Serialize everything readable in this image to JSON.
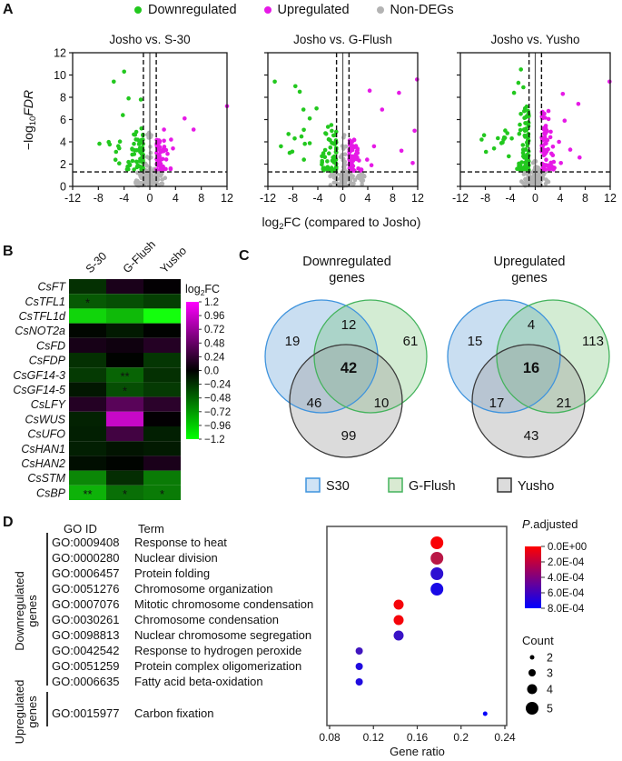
{
  "panel_labels": {
    "a": "A",
    "b": "B",
    "c": "C",
    "d": "D"
  },
  "top_legend": {
    "items": [
      {
        "label": "Downregulated",
        "color": "#22c81e"
      },
      {
        "label": "Upregulated",
        "color": "#e619e6"
      },
      {
        "label": "Non-DEGs",
        "color": "#b3b3b3"
      }
    ]
  },
  "axis_labels": {
    "volcano_y": {
      "pre": "−log",
      "sub": "10",
      "post": "FDR"
    },
    "volcano_x": {
      "pre": "log",
      "sub": "2",
      "post": "FC (compared to Josho)"
    }
  },
  "chart_data": [
    {
      "id": "volcano-s30",
      "type": "scatter",
      "title": "Josho vs. S-30",
      "xlim": [
        -12,
        12
      ],
      "ylim": [
        0,
        12
      ],
      "xticks": [
        -12,
        -8,
        -4,
        0,
        4,
        8,
        12
      ],
      "yticks": [
        0,
        2,
        4,
        6,
        8,
        10,
        12
      ],
      "thresholds": {
        "x": [
          -1,
          1
        ],
        "y": 1.3
      },
      "series": [
        {
          "name": "Non-DEGs",
          "color": "#b3b3b3",
          "clusters": [
            {
              "x": [
                -2.6,
                2.6
              ],
              "y": [
                0.05,
                1.35
              ],
              "n": 100
            },
            {
              "x": [
                -0.9,
                0.9
              ],
              "y": [
                1.35,
                4.9
              ],
              "n": 20,
              "funnel": true
            }
          ],
          "outliers": []
        },
        {
          "name": "Downregulated",
          "color": "#22c81e",
          "clusters": [
            {
              "x": [
                -3.6,
                -1.05
              ],
              "y": [
                1.5,
                4.8
              ],
              "n": 55,
              "funnel": true
            },
            {
              "x": [
                -8.6,
                -4.0
              ],
              "y": [
                1.9,
                4.2
              ],
              "n": 9
            }
          ],
          "outliers": [
            [
              -4.0,
              10.3
            ],
            [
              -5.6,
              9.4
            ],
            [
              -3.3,
              7.9
            ],
            [
              -1.4,
              7.8
            ],
            [
              -4.2,
              6.4
            ],
            [
              -1.3,
              5.2
            ],
            [
              -2.1,
              4.9
            ]
          ]
        },
        {
          "name": "Upregulated",
          "color": "#e619e6",
          "clusters": [
            {
              "x": [
                1.05,
                3.3
              ],
              "y": [
                1.5,
                4.3
              ],
              "n": 45,
              "funnel": true
            }
          ],
          "outliers": [
            [
              12,
              7.2
            ],
            [
              5.4,
              6.1
            ],
            [
              6.8,
              5.1
            ],
            [
              2.2,
              5.1
            ],
            [
              3.3,
              4.2
            ],
            [
              3.6,
              3.4
            ]
          ]
        }
      ]
    },
    {
      "id": "volcano-gflush",
      "type": "scatter",
      "title": "Josho vs. G-Flush",
      "xlim": [
        -12,
        12
      ],
      "ylim": [
        0,
        12
      ],
      "xticks": [
        -12,
        -8,
        -4,
        0,
        4,
        8,
        12
      ],
      "yticks": [
        0,
        2,
        4,
        6,
        8,
        10,
        12
      ],
      "thresholds": {
        "x": [
          -1,
          1
        ],
        "y": 1.3
      },
      "series": [
        {
          "name": "Non-DEGs",
          "color": "#b3b3b3",
          "clusters": [
            {
              "x": [
                -2.2,
                2.2
              ],
              "y": [
                0.05,
                1.35
              ],
              "n": 90
            },
            {
              "x": [
                2.2,
                3.8
              ],
              "y": [
                0.1,
                1.3
              ],
              "n": 15
            },
            {
              "x": [
                -0.8,
                0.8
              ],
              "y": [
                1.35,
                5.3
              ],
              "n": 18,
              "funnel": true
            }
          ],
          "outliers": []
        },
        {
          "name": "Downregulated",
          "color": "#22c81e",
          "clusters": [
            {
              "x": [
                -3.8,
                -1.05
              ],
              "y": [
                1.4,
                5.6
              ],
              "n": 55,
              "funnel": true
            },
            {
              "x": [
                -9.0,
                -4.2
              ],
              "y": [
                2.4,
                5.2
              ],
              "n": 8
            }
          ],
          "outliers": [
            [
              -10.9,
              9.4
            ],
            [
              -7.6,
              9.0
            ],
            [
              -6.9,
              8.5
            ],
            [
              -6.3,
              6.9
            ],
            [
              -5.3,
              6.1
            ],
            [
              -8.7,
              4.7
            ],
            [
              -9.9,
              3.6
            ],
            [
              -4.2,
              7.0
            ]
          ]
        },
        {
          "name": "Upregulated",
          "color": "#e619e6",
          "clusters": [
            {
              "x": [
                1.05,
                3.1
              ],
              "y": [
                1.4,
                4.2
              ],
              "n": 70,
              "funnel": true
            }
          ],
          "outliers": [
            [
              11.9,
              9.6
            ],
            [
              9.0,
              8.4
            ],
            [
              4.3,
              8.6
            ],
            [
              6.3,
              6.9
            ],
            [
              11.5,
              5.0
            ],
            [
              5.0,
              3.6
            ],
            [
              9.4,
              3.2
            ],
            [
              11.2,
              2.1
            ],
            [
              3.9,
              2.4
            ],
            [
              4.6,
              1.9
            ]
          ]
        }
      ]
    },
    {
      "id": "volcano-yusho",
      "type": "scatter",
      "title": "Josho vs. Yusho",
      "xlim": [
        -12,
        12
      ],
      "ylim": [
        0,
        12
      ],
      "xticks": [
        -12,
        -8,
        -4,
        0,
        4,
        8,
        12
      ],
      "yticks": [
        0,
        2,
        4,
        6,
        8,
        10,
        12
      ],
      "thresholds": {
        "x": [
          -1,
          1
        ],
        "y": 1.3
      },
      "series": [
        {
          "name": "Non-DEGs",
          "color": "#b3b3b3",
          "clusters": [
            {
              "x": [
                -2.4,
                2.4
              ],
              "y": [
                0.05,
                1.5
              ],
              "n": 90
            },
            {
              "x": [
                -0.9,
                0.9
              ],
              "y": [
                1.35,
                2.4
              ],
              "n": 14,
              "funnel": true
            }
          ],
          "outliers": []
        },
        {
          "name": "Downregulated",
          "color": "#22c81e",
          "clusters": [
            {
              "x": [
                -3.3,
                -1.05
              ],
              "y": [
                1.5,
                7.2
              ],
              "n": 80,
              "funnel": true
            },
            {
              "x": [
                -6.2,
                -3.3
              ],
              "y": [
                2.4,
                5.6
              ],
              "n": 10
            }
          ],
          "outliers": [
            [
              -2.3,
              10.5
            ],
            [
              -2.7,
              9.3
            ],
            [
              -1.9,
              8.9
            ],
            [
              -3.4,
              8.4
            ],
            [
              -8.2,
              4.6
            ],
            [
              -8.6,
              4.2
            ],
            [
              -6.6,
              3.4
            ],
            [
              -7.9,
              3.1
            ]
          ]
        },
        {
          "name": "Upregulated",
          "color": "#e619e6",
          "clusters": [
            {
              "x": [
                1.05,
                3.2
              ],
              "y": [
                1.5,
                6.8
              ],
              "n": 70,
              "funnel": true
            }
          ],
          "outliers": [
            [
              11.9,
              9.4
            ],
            [
              4.4,
              8.3
            ],
            [
              6.9,
              7.4
            ],
            [
              4.7,
              5.9
            ],
            [
              5.6,
              3.3
            ],
            [
              7.1,
              2.6
            ],
            [
              4.1,
              2.1
            ],
            [
              3.8,
              4.0
            ]
          ]
        }
      ]
    },
    {
      "id": "gene-heatmap",
      "type": "heatmap",
      "columns": [
        "S-30",
        "G-Flush",
        "Yusho"
      ],
      "colorbar": {
        "title": {
          "pre": "log",
          "sub": "2",
          "post": "FC"
        },
        "ticks": [
          "1.2",
          "0.96",
          "0.72",
          "0.48",
          "0.24",
          "0.0",
          "−0.24",
          "−0.48",
          "−0.72",
          "−0.96",
          "−1.2"
        ],
        "max_color": "#ff00ff",
        "mid_color": "#000000",
        "min_color": "#00ff00",
        "range": [
          1.2,
          -1.2
        ]
      },
      "rows": [
        {
          "gene": "CsFT",
          "values": [
            -0.35,
            0.22,
            0.05
          ],
          "sig": [
            "",
            "",
            ""
          ]
        },
        {
          "gene": "CsTFL1",
          "values": [
            -0.55,
            -0.5,
            -0.42
          ],
          "sig": [
            "*",
            "",
            ""
          ]
        },
        {
          "gene": "CsTFL1d",
          "values": [
            -1.05,
            -0.95,
            -1.2
          ],
          "sig": [
            "",
            "",
            ""
          ]
        },
        {
          "gene": "CsNOT2a",
          "values": [
            -0.08,
            -0.22,
            -0.04
          ],
          "sig": [
            "",
            "",
            ""
          ]
        },
        {
          "gene": "CsFD",
          "values": [
            0.2,
            0.15,
            0.28
          ],
          "sig": [
            "",
            "",
            ""
          ]
        },
        {
          "gene": "CsFDP",
          "values": [
            -0.35,
            -0.04,
            -0.38
          ],
          "sig": [
            "",
            "",
            ""
          ]
        },
        {
          "gene": "CsGF14-3",
          "values": [
            -0.4,
            -0.6,
            -0.35
          ],
          "sig": [
            "",
            "**",
            ""
          ]
        },
        {
          "gene": "CsGF14-5",
          "values": [
            -0.2,
            -0.5,
            -0.4
          ],
          "sig": [
            "",
            "*",
            ""
          ]
        },
        {
          "gene": "CsLFY",
          "values": [
            0.28,
            0.55,
            0.32
          ],
          "sig": [
            "",
            "",
            ""
          ]
        },
        {
          "gene": "CsWUS",
          "values": [
            -0.27,
            1.0,
            0.04
          ],
          "sig": [
            "",
            "",
            ""
          ]
        },
        {
          "gene": "CsUFO",
          "values": [
            -0.25,
            0.44,
            -0.25
          ],
          "sig": [
            "",
            "",
            ""
          ]
        },
        {
          "gene": "CsHAN1",
          "values": [
            -0.25,
            -0.18,
            -0.22
          ],
          "sig": [
            "",
            "",
            ""
          ]
        },
        {
          "gene": "CsHAN2",
          "values": [
            -0.14,
            -0.06,
            0.22
          ],
          "sig": [
            "",
            "",
            ""
          ]
        },
        {
          "gene": "CsSTM",
          "values": [
            -0.75,
            -0.33,
            -0.7
          ],
          "sig": [
            "",
            "",
            ""
          ]
        },
        {
          "gene": "CsBP",
          "values": [
            -0.92,
            -0.65,
            -0.7
          ],
          "sig": [
            "**",
            "*",
            "*"
          ]
        }
      ]
    },
    {
      "id": "venn-downregulated",
      "type": "venn",
      "title_lines": [
        "Downregulated",
        "genes"
      ],
      "counts": {
        "s30_only": 19,
        "s30_gflush": 12,
        "gflush_only": 61,
        "s30_yusho": 46,
        "all_three": 42,
        "gflush_yusho": 10,
        "yusho_only": 99
      }
    },
    {
      "id": "venn-upregulated",
      "type": "venn",
      "title_lines": [
        "Upregulated",
        "genes"
      ],
      "counts": {
        "s30_only": 15,
        "s30_gflush": 4,
        "gflush_only": 113,
        "s30_yusho": 17,
        "all_three": 16,
        "gflush_yusho": 21,
        "yusho_only": 43
      }
    },
    {
      "id": "go-dotplot",
      "type": "scatter",
      "xlabel": "Gene ratio",
      "xlim": [
        0.08,
        0.24
      ],
      "xticks": [
        0.08,
        0.12,
        0.16,
        0.2,
        0.24
      ],
      "p_legend": {
        "title_italic": "P",
        "title_rest": ".adjusted",
        "ticks": [
          "0.0E+00",
          "2.0E-04",
          "4.0E-04",
          "6.0E-04",
          "8.0E-04"
        ],
        "max_p": 0.0008,
        "top_color": "#ff0000",
        "bottom_color": "#0000ff"
      },
      "count_legend": {
        "title": "Count",
        "items": [
          2,
          3,
          4,
          5
        ]
      },
      "points": [
        {
          "go_id": "GO:0009408",
          "term": "Response to heat",
          "gene_ratio": 0.178,
          "count": 5,
          "p_adjusted": 2e-05
        },
        {
          "go_id": "GO:0000280",
          "term": "Nuclear division",
          "gene_ratio": 0.178,
          "count": 5,
          "p_adjusted": 0.00022
        },
        {
          "go_id": "GO:0006457",
          "term": "Protein folding",
          "gene_ratio": 0.178,
          "count": 5,
          "p_adjusted": 0.00066
        },
        {
          "go_id": "GO:0051276",
          "term": "Chromosome organization",
          "gene_ratio": 0.178,
          "count": 5,
          "p_adjusted": 0.00072
        },
        {
          "go_id": "GO:0007076",
          "term": "Mitotic chromosome condensation",
          "gene_ratio": 0.143,
          "count": 4,
          "p_adjusted": 3e-05
        },
        {
          "go_id": "GO:0030261",
          "term": "Chromosome condensation",
          "gene_ratio": 0.143,
          "count": 4,
          "p_adjusted": 3e-05
        },
        {
          "go_id": "GO:0098813",
          "term": "Nuclear chromosome segregation",
          "gene_ratio": 0.143,
          "count": 4,
          "p_adjusted": 0.00062
        },
        {
          "go_id": "GO:0042542",
          "term": "Response to hydrogen peroxide",
          "gene_ratio": 0.107,
          "count": 3,
          "p_adjusted": 0.0006
        },
        {
          "go_id": "GO:0051259",
          "term": "Protein complex oligomerization",
          "gene_ratio": 0.107,
          "count": 3,
          "p_adjusted": 0.0007
        },
        {
          "go_id": "GO:0006635",
          "term": "Fatty acid beta-oxidation",
          "gene_ratio": 0.107,
          "count": 3,
          "p_adjusted": 0.0007
        },
        {
          "go_id": "GO:0015977",
          "term": "Carbon fixation",
          "gene_ratio": 0.222,
          "count": 2,
          "p_adjusted": 0.00078
        }
      ]
    }
  ],
  "venn_set_colors": {
    "s30": {
      "fill": "#5b9bd5",
      "stroke": "#3e93dd",
      "opacity": 0.33
    },
    "gflush": {
      "fill": "#5cb85c",
      "stroke": "#43b35c",
      "opacity": 0.27
    },
    "yusho": {
      "fill": "#999999",
      "stroke": "#3a3a3a",
      "opacity": 0.35
    }
  },
  "venn_legend": {
    "items": [
      {
        "label": "S30",
        "fill": "#cfe3f5",
        "stroke": "#3e93dd"
      },
      {
        "label": "G-Flush",
        "fill": "#d9ead2",
        "stroke": "#43b35c"
      },
      {
        "label": "Yusho",
        "fill": "#dcdcdc",
        "stroke": "#333333"
      }
    ]
  },
  "go_table": {
    "headers": {
      "id": "GO ID",
      "term": "Term"
    },
    "groups": [
      {
        "label_lines": [
          "Downregulated",
          "genes"
        ],
        "rows": [
          {
            "id": "GO:0009408",
            "term": "Response to heat"
          },
          {
            "id": "GO:0000280",
            "term": "Nuclear division"
          },
          {
            "id": "GO:0006457",
            "term": "Protein folding"
          },
          {
            "id": "GO:0051276",
            "term": "Chromosome organization"
          },
          {
            "id": "GO:0007076",
            "term": "Mitotic chromosome condensation"
          },
          {
            "id": "GO:0030261",
            "term": "Chromosome condensation"
          },
          {
            "id": "GO:0098813",
            "term": "Nuclear chromosome segregation"
          },
          {
            "id": "GO:0042542",
            "term": "Response to hydrogen peroxide"
          },
          {
            "id": "GO:0051259",
            "term": "Protein complex oligomerization"
          },
          {
            "id": "GO:0006635",
            "term": "Fatty acid beta-oxidation"
          }
        ]
      },
      {
        "label_lines": [
          "Upregulated",
          "genes"
        ],
        "rows": [
          {
            "id": "GO:0015977",
            "term": "Carbon fixation"
          }
        ]
      }
    ]
  }
}
